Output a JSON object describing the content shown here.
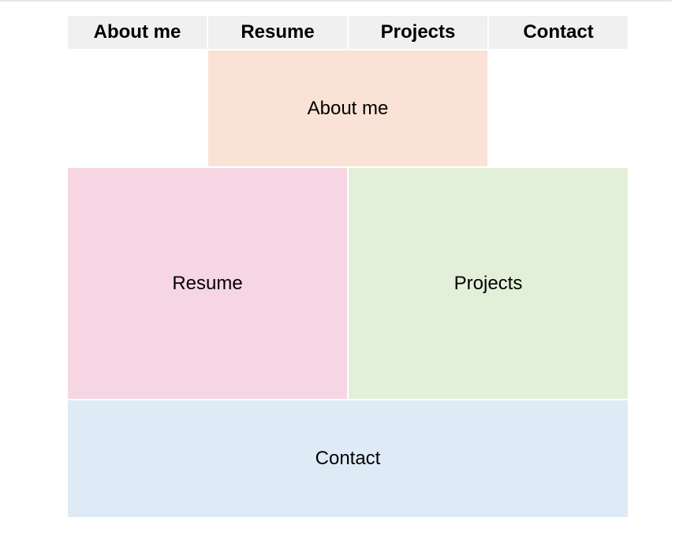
{
  "nav": {
    "items": [
      {
        "label": "About me"
      },
      {
        "label": "Resume"
      },
      {
        "label": "Projects"
      },
      {
        "label": "Contact"
      }
    ]
  },
  "panels": {
    "about": {
      "label": "About me",
      "color": "#fbe2d6"
    },
    "resume": {
      "label": "Resume",
      "color": "#f7d6e4"
    },
    "projects": {
      "label": "Projects",
      "color": "#e2efd9"
    },
    "contact": {
      "label": "Contact",
      "color": "#deeaf5"
    }
  },
  "colors": {
    "nav_background": "#f0f0f0"
  }
}
